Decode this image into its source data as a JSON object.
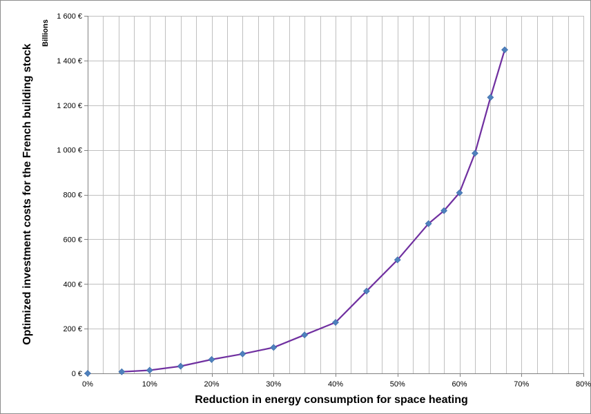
{
  "chart_data": {
    "type": "line",
    "xlabel": "Reduction in energy consumption for space heating",
    "ylabel": "Optimized investment costs for the French  building stock",
    "y_unit_label": "Billions",
    "xlim": [
      0,
      80
    ],
    "ylim": [
      0,
      1600
    ],
    "x_ticks": [
      0,
      10,
      20,
      30,
      40,
      50,
      60,
      70,
      80
    ],
    "x_tick_labels": [
      "0%",
      "10%",
      "20%",
      "30%",
      "40%",
      "50%",
      "60%",
      "70%",
      "80%"
    ],
    "y_ticks": [
      0,
      200,
      400,
      600,
      800,
      1000,
      1200,
      1400,
      1600
    ],
    "y_tick_labels": [
      "0 €",
      "200 €",
      "400 €",
      "600 €",
      "800 €",
      "1 000 €",
      "1 200 €",
      "1 400 €",
      "1 600 €"
    ],
    "grid": true,
    "x_minor_step": 2.5,
    "colors": {
      "line": "#7030a0",
      "marker": "#4f81bd",
      "grid": "#bfbfbf",
      "axis": "#808080"
    },
    "points": [
      {
        "x": 0,
        "y": 0
      },
      {
        "x": 5.5,
        "y": 7
      },
      {
        "x": 10,
        "y": 14
      },
      {
        "x": 15,
        "y": 32
      },
      {
        "x": 20,
        "y": 62
      },
      {
        "x": 25,
        "y": 87
      },
      {
        "x": 30,
        "y": 116
      },
      {
        "x": 35,
        "y": 172
      },
      {
        "x": 40,
        "y": 228
      },
      {
        "x": 45,
        "y": 368
      },
      {
        "x": 50,
        "y": 508
      },
      {
        "x": 55,
        "y": 670
      },
      {
        "x": 57.5,
        "y": 728
      },
      {
        "x": 60,
        "y": 808
      },
      {
        "x": 62.5,
        "y": 985
      },
      {
        "x": 65,
        "y": 1235
      },
      {
        "x": 67.3,
        "y": 1448
      }
    ],
    "line_starts_at_index": 1
  }
}
